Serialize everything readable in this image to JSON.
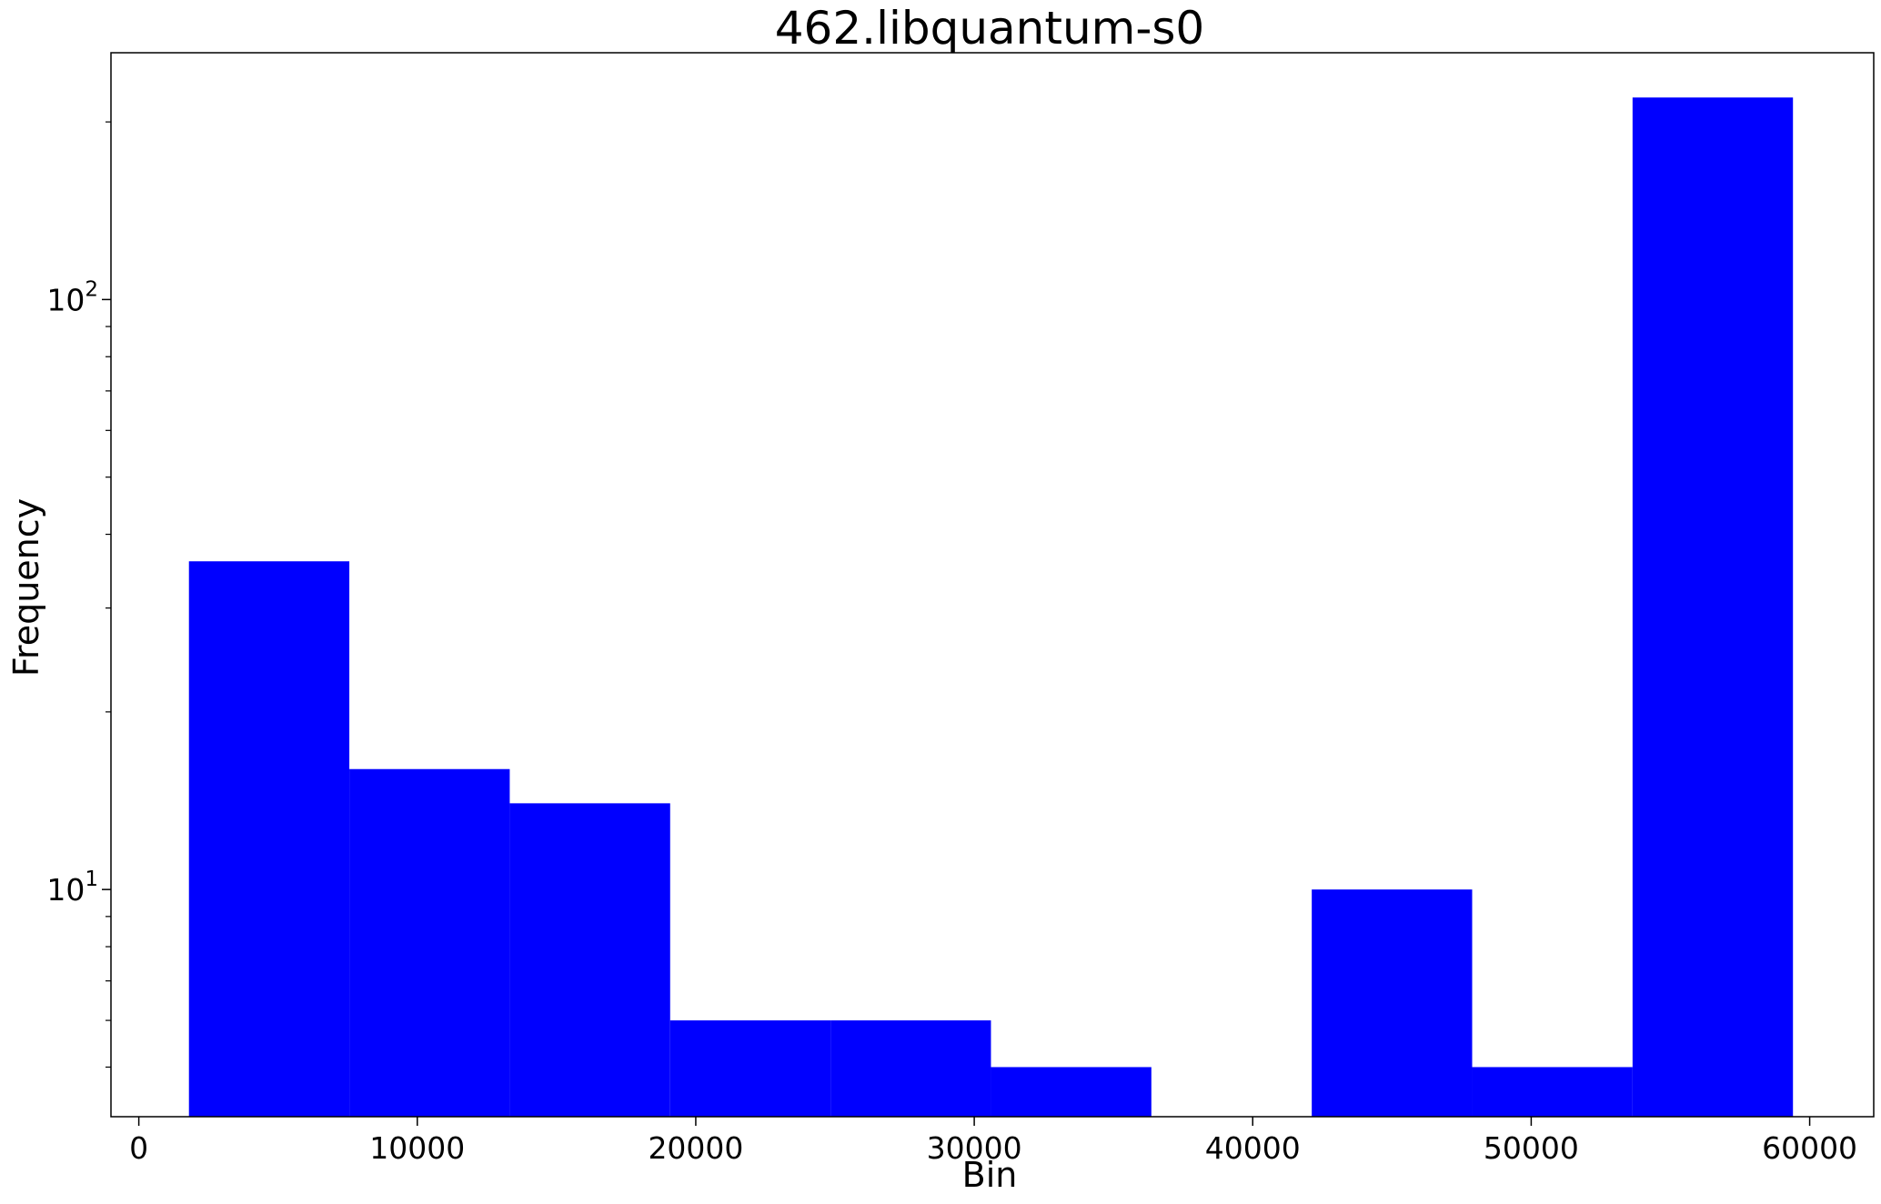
{
  "chart_data": {
    "type": "bar",
    "title": "462.libquantum-s0",
    "xlabel": "Bin",
    "ylabel": "Frequency",
    "x_scale": "linear",
    "y_scale": "log",
    "xlim": [
      -1000,
      62300
    ],
    "ylim": [
      4.12,
      262
    ],
    "bar_color": "#0000ff",
    "grid": false,
    "x_ticks": [
      {
        "value": 0,
        "label": "0"
      },
      {
        "value": 10000,
        "label": "10000"
      },
      {
        "value": 20000,
        "label": "20000"
      },
      {
        "value": 30000,
        "label": "30000"
      },
      {
        "value": 40000,
        "label": "40000"
      },
      {
        "value": 50000,
        "label": "50000"
      },
      {
        "value": 60000,
        "label": "60000"
      }
    ],
    "y_ticks": [
      {
        "value": 10,
        "base": "10",
        "exp": "1"
      },
      {
        "value": 100,
        "base": "10",
        "exp": "2"
      }
    ],
    "bins": [
      {
        "x0": 1800,
        "x1": 7560,
        "value": 36
      },
      {
        "x0": 7560,
        "x1": 13320,
        "value": 16
      },
      {
        "x0": 13320,
        "x1": 19080,
        "value": 14
      },
      {
        "x0": 19080,
        "x1": 24840,
        "value": 6
      },
      {
        "x0": 24840,
        "x1": 30600,
        "value": 6
      },
      {
        "x0": 30600,
        "x1": 36360,
        "value": 5
      },
      {
        "x0": 36360,
        "x1": 42120,
        "value": 4
      },
      {
        "x0": 42120,
        "x1": 47880,
        "value": 10
      },
      {
        "x0": 47880,
        "x1": 53640,
        "value": 5
      },
      {
        "x0": 53640,
        "x1": 59400,
        "value": 220
      }
    ]
  }
}
